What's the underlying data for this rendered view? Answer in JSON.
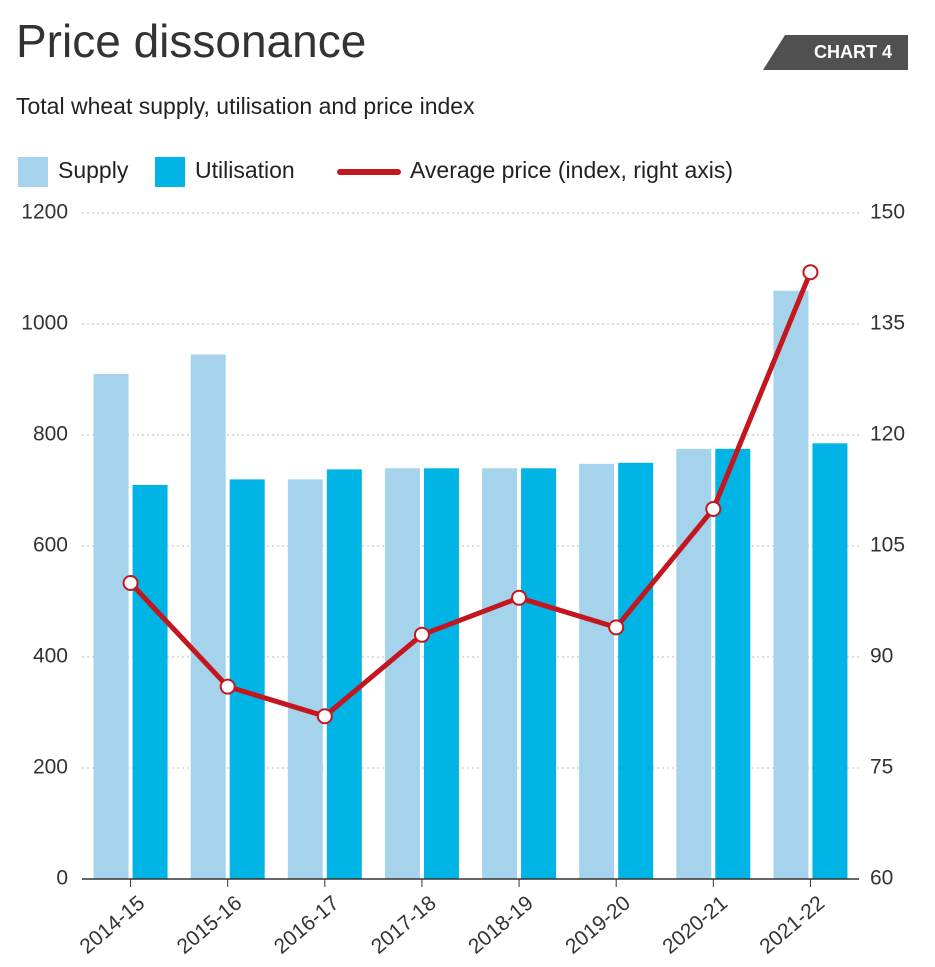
{
  "chart_data": {
    "type": "bar",
    "title": "Price dissonance",
    "subtitle": "Total wheat supply, utilisation and price index",
    "badge": "CHART 4",
    "categories": [
      "2014-15",
      "2015-16",
      "2016-17",
      "2017-18",
      "2018-19",
      "2019-20",
      "2020-21",
      "2021-22"
    ],
    "series": [
      {
        "name": "Supply",
        "color": "#a6d3ec",
        "values": [
          910,
          945,
          720,
          740,
          740,
          748,
          775,
          1060
        ]
      },
      {
        "name": "Utilisation",
        "color": "#00b4e6",
        "values": [
          710,
          720,
          738,
          740,
          740,
          750,
          775,
          785
        ]
      },
      {
        "name": "Average price (index, right axis)",
        "color": "#c3161e",
        "axis": "y2",
        "type": "line",
        "values": [
          100,
          86,
          82,
          93,
          98,
          94,
          110,
          142
        ]
      }
    ],
    "ylim": [
      0,
      1200
    ],
    "yticks": [
      0,
      200,
      400,
      600,
      800,
      1000,
      1200
    ],
    "y2lim": [
      60,
      150
    ],
    "y2ticks": [
      60,
      75,
      90,
      105,
      120,
      135,
      150
    ],
    "grid": true
  }
}
